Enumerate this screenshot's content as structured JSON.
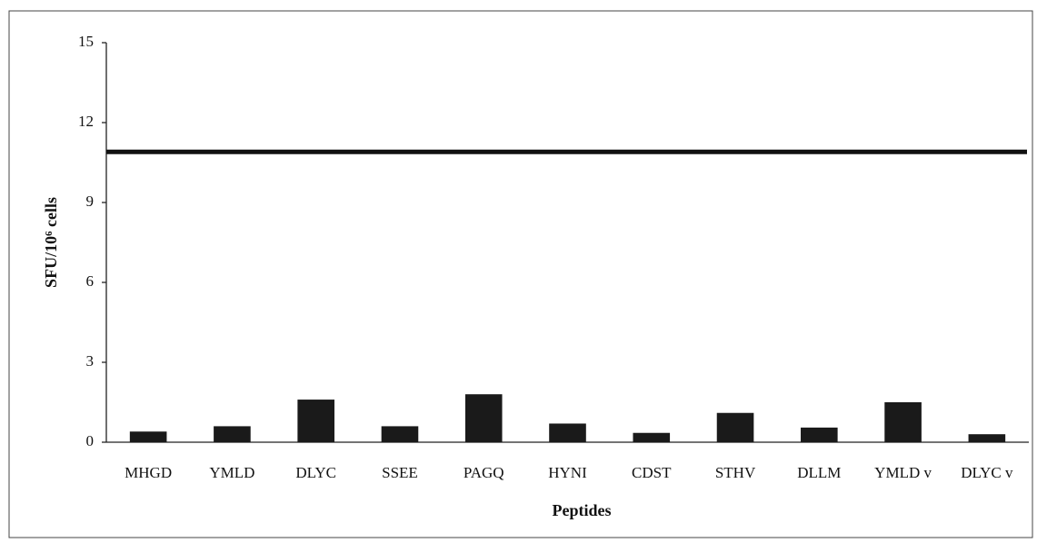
{
  "chart_data": {
    "type": "bar",
    "x_label": "Peptides",
    "y_label": "SFU/10⁶ cells",
    "categories": [
      "MHGD",
      "YMLD",
      "DLYC",
      "SSEE",
      "PAGQ",
      "HYNI",
      "CDST",
      "STHV",
      "DLLM",
      "YMLD v",
      "DLYC v"
    ],
    "values": [
      0.4,
      0.6,
      1.6,
      0.6,
      1.8,
      0.7,
      0.35,
      1.1,
      0.55,
      1.5,
      0.3
    ],
    "color": "#1a1a1a",
    "threshold": 10.9,
    "ylim": [
      0,
      15
    ],
    "yticks": [
      0,
      3,
      6,
      9,
      12,
      15
    ],
    "grid": false
  }
}
